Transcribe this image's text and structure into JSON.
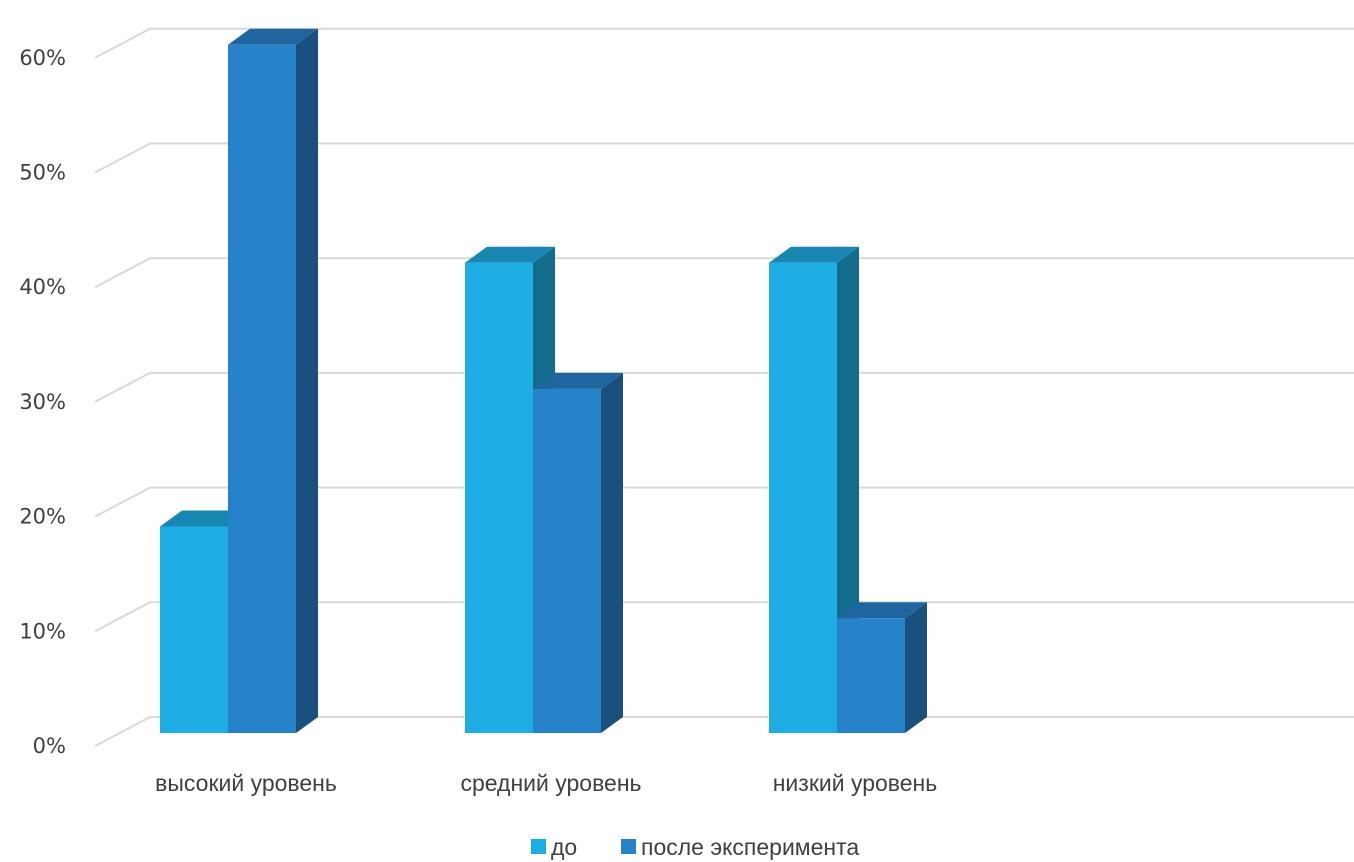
{
  "chart_data": {
    "type": "bar",
    "categories": [
      "высокий уровень",
      "средний уровень",
      "низкий уровень"
    ],
    "series": [
      {
        "name": "до",
        "values": [
          18,
          41,
          41
        ],
        "color": "#1EADE3"
      },
      {
        "name": "после эксперимента",
        "values": [
          60,
          30,
          10
        ],
        "color": "#2783C9"
      }
    ],
    "ylim": [
      0,
      60
    ],
    "yticks": [
      "0%",
      "10%",
      "20%",
      "30%",
      "40%",
      "50%",
      "60%"
    ],
    "grid": true,
    "legend": "bottom-center",
    "style": "3d-column"
  }
}
